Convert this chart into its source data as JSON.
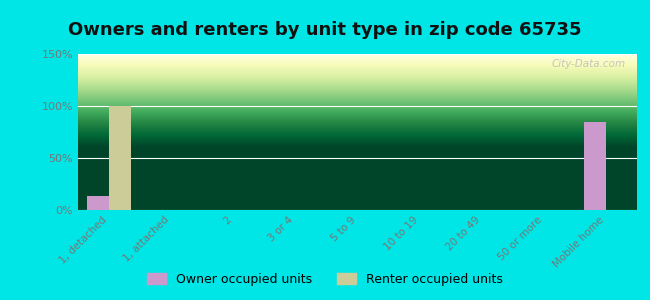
{
  "title": "Owners and renters by unit type in zip code 65735",
  "categories": [
    "1, detached",
    "1, attached",
    "2",
    "3 or 4",
    "5 to 9",
    "10 to 19",
    "20 to 49",
    "50 or more",
    "Mobile home"
  ],
  "owner_values": [
    13,
    0,
    0,
    0,
    0,
    0,
    0,
    0,
    85
  ],
  "renter_values": [
    100,
    0,
    0,
    0,
    0,
    0,
    0,
    0,
    0
  ],
  "owner_color": "#cc99cc",
  "renter_color": "#cccc99",
  "ylim": [
    0,
    150
  ],
  "yticks": [
    0,
    50,
    100,
    150
  ],
  "ytick_labels": [
    "0%",
    "50%",
    "100%",
    "150%"
  ],
  "background_outer": "#00e5e5",
  "title_fontsize": 13,
  "legend_labels": [
    "Owner occupied units",
    "Renter occupied units"
  ],
  "bar_width": 0.35,
  "watermark": "City-Data.com"
}
